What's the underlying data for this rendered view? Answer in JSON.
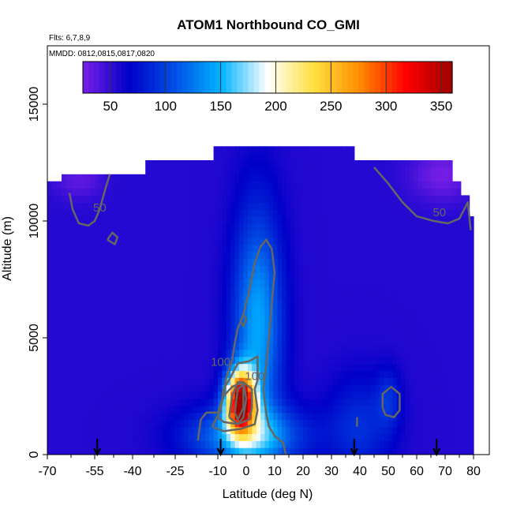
{
  "chart_data": {
    "type": "heatmap",
    "title": "ATOM1 Northbound CO_GMI",
    "subtitle_flights": "Flts: 6,7,8,9",
    "subtitle_dates": "MMDD: 0812,0815,0817,0820",
    "xlabel": "Latitude (deg N)",
    "ylabel": "Altitude (m)",
    "xlim": [
      -70,
      80
    ],
    "ylim": [
      0,
      17500
    ],
    "x_ticks": [
      -70,
      -55,
      -40,
      -25,
      -10,
      0,
      10,
      20,
      30,
      40,
      50,
      60,
      70,
      80
    ],
    "x_tick_labels": [
      "-70",
      "-55",
      "-40",
      "-25",
      "-10",
      "0",
      "10",
      "20",
      "30",
      "40",
      "50",
      "60",
      "70",
      "80"
    ],
    "y_ticks": [
      0,
      5000,
      10000,
      15000
    ],
    "y_tick_labels": [
      "0",
      "5000",
      "10000",
      "15000"
    ],
    "colorbar": {
      "range": [
        25,
        360
      ],
      "ticks": [
        50,
        100,
        150,
        200,
        250,
        300,
        350
      ],
      "tick_labels": [
        "50",
        "100",
        "150",
        "200",
        "250",
        "300",
        "350"
      ],
      "colors": [
        "#7a1fe6",
        "#0000c8",
        "#0050e6",
        "#00b4ff",
        "#ffffff",
        "#ffe040",
        "#ff8c00",
        "#ff0000",
        "#a00000"
      ]
    },
    "contour_labels": [
      {
        "lat": -53,
        "alt": 10400,
        "text": "50"
      },
      {
        "lat": 68,
        "alt": 10200,
        "text": "50"
      },
      {
        "lat": -9,
        "alt": 3800,
        "text": "100"
      },
      {
        "lat": 3,
        "alt": 3200,
        "text": "100"
      }
    ],
    "flight_arrows_lat": [
      -54,
      -9,
      38,
      67
    ],
    "background_value": 55,
    "top_profile": [
      {
        "lat0": -70,
        "lat1": -65,
        "top": 11500
      },
      {
        "lat0": -65,
        "lat1": -35,
        "top": 12000
      },
      {
        "lat0": -35,
        "lat1": -12,
        "top": 12500
      },
      {
        "lat0": -12,
        "lat1": 38,
        "top": 12950
      },
      {
        "lat0": 38,
        "lat1": 72,
        "top": 12500
      },
      {
        "lat0": 72,
        "lat1": 76,
        "top": 11500
      },
      {
        "lat0": 76,
        "lat1": 78,
        "top": 11000
      },
      {
        "lat0": 78,
        "lat1": 80,
        "top": 10000
      }
    ],
    "plumes": [
      {
        "lat": -2,
        "alt": 2300,
        "sx": 3.5,
        "sy": 900,
        "amp": 290
      },
      {
        "lat": 4,
        "alt": 5500,
        "sx": 6,
        "sy": 3500,
        "amp": 90
      },
      {
        "lat": 0,
        "alt": 800,
        "sx": 14,
        "sy": 900,
        "amp": 90
      },
      {
        "lat": 40,
        "alt": 1200,
        "sx": 8,
        "sy": 1500,
        "amp": 35
      },
      {
        "lat": 50,
        "alt": 2400,
        "sx": 3,
        "sy": 900,
        "amp": 30
      },
      {
        "lat": 69,
        "alt": 12000,
        "sx": 8,
        "sy": 800,
        "amp": -28
      },
      {
        "lat": -60,
        "alt": 11800,
        "sx": 6,
        "sy": 600,
        "amp": -20
      }
    ],
    "contours": [
      {
        "level": 50,
        "points": [
          [
            -63,
            11200
          ],
          [
            -62,
            10500
          ],
          [
            -60,
            9900
          ],
          [
            -57,
            9800
          ],
          [
            -55,
            10000
          ],
          [
            -53,
            10500
          ],
          [
            -51,
            11300
          ],
          [
            -49,
            12000
          ]
        ]
      },
      {
        "level": 50,
        "points": [
          [
            -50,
            9200
          ],
          [
            -47,
            9000
          ],
          [
            -46,
            9300
          ],
          [
            -48,
            9500
          ],
          [
            -50,
            9200
          ]
        ]
      },
      {
        "level": 50,
        "points": [
          [
            45,
            12300
          ],
          [
            50,
            11600
          ],
          [
            55,
            10800
          ],
          [
            60,
            10200
          ],
          [
            66,
            10000
          ],
          [
            71,
            9900
          ],
          [
            75,
            10100
          ],
          [
            78,
            10800
          ],
          [
            79,
            9600
          ]
        ]
      },
      {
        "level": 50,
        "points": [
          [
            39,
            1600
          ],
          [
            39,
            1200
          ]
        ]
      },
      {
        "level": 80,
        "points": [
          [
            -17,
            600
          ],
          [
            -16,
            1500
          ],
          [
            -14,
            1800
          ],
          [
            -10,
            1800
          ],
          [
            -8,
            2500
          ],
          [
            -7,
            3300
          ],
          [
            -5,
            4000
          ],
          [
            -4,
            4800
          ],
          [
            -3,
            5400
          ],
          [
            -1,
            6000
          ],
          [
            1,
            7000
          ],
          [
            3,
            8200
          ],
          [
            5,
            8900
          ],
          [
            7,
            9200
          ],
          [
            9,
            8800
          ],
          [
            10,
            7800
          ],
          [
            9,
            6500
          ],
          [
            8,
            5000
          ],
          [
            7,
            3800
          ],
          [
            6,
            2800
          ],
          [
            7,
            1800
          ],
          [
            8,
            1200
          ],
          [
            10,
            800
          ],
          [
            13,
            500
          ],
          [
            14,
            0
          ]
        ]
      },
      {
        "level": 80,
        "points": [
          [
            48,
            2000
          ],
          [
            48,
            2600
          ],
          [
            51,
            2900
          ],
          [
            54,
            2600
          ],
          [
            54,
            1900
          ],
          [
            52,
            1600
          ],
          [
            49,
            1700
          ],
          [
            48,
            2000
          ]
        ]
      },
      {
        "level": 80,
        "points": [
          [
            -2,
            5700
          ],
          [
            -1,
            6000
          ],
          [
            0,
            5800
          ],
          [
            -1,
            5500
          ],
          [
            -2,
            5700
          ]
        ]
      },
      {
        "level": 100,
        "points": [
          [
            -12,
            1200
          ],
          [
            -9,
            1900
          ],
          [
            -8,
            2800
          ],
          [
            -6,
            3200
          ],
          [
            -3,
            3900
          ],
          [
            1,
            4000
          ],
          [
            4,
            4200
          ],
          [
            4,
            3200
          ],
          [
            3,
            2800
          ],
          [
            4,
            1900
          ],
          [
            3,
            1300
          ],
          [
            -2,
            1100
          ],
          [
            -8,
            1000
          ],
          [
            -12,
            1200
          ]
        ]
      },
      {
        "level": 150,
        "points": [
          [
            -10,
            1600
          ],
          [
            -8,
            2500
          ],
          [
            -5,
            2900
          ],
          [
            -1,
            3100
          ],
          [
            2,
            2800
          ],
          [
            2,
            2000
          ],
          [
            1,
            1500
          ],
          [
            -3,
            1300
          ],
          [
            -8,
            1400
          ],
          [
            -10,
            1600
          ]
        ]
      },
      {
        "level": 250,
        "points": [
          [
            -6,
            1600
          ],
          [
            -5,
            2500
          ],
          [
            -3,
            3100
          ],
          [
            -1,
            3100
          ],
          [
            0,
            2400
          ],
          [
            -1,
            1600
          ],
          [
            -3,
            1300
          ],
          [
            -6,
            1600
          ]
        ]
      },
      {
        "level": 300,
        "points": [
          [
            -4,
            1800
          ],
          [
            -3,
            2800
          ],
          [
            -1,
            3000
          ],
          [
            -1,
            2000
          ],
          [
            -3,
            1500
          ],
          [
            -4,
            1800
          ]
        ]
      }
    ]
  }
}
